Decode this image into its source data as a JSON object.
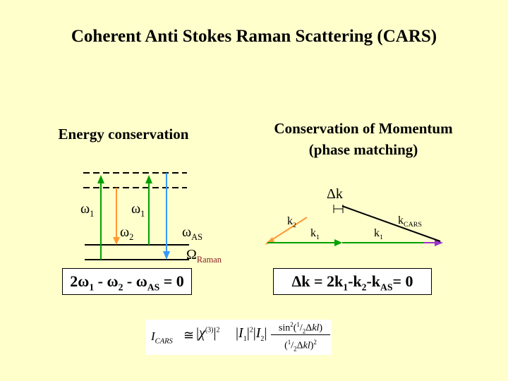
{
  "title": "Coherent Anti Stokes Raman Scattering (CARS)",
  "energy": {
    "heading": "Energy conservation",
    "omega_symbol": "ω",
    "labels": {
      "pump1_sub": "1",
      "pump2_sub": "1",
      "stokes_sub": "2",
      "anti_stokes_sub": "AS"
    },
    "raman": {
      "symbol": "Ω",
      "sub": "Raman"
    },
    "equation": {
      "a": "2ω",
      "a_sub": "1",
      "b": "- ω",
      "b_sub": "2",
      "c": "- ω",
      "c_sub": "AS",
      "end": "= 0"
    }
  },
  "momentum": {
    "heading_line1": "Conservation of Momentum",
    "heading_line2": "(phase matching)",
    "delta_k": "Δk",
    "k2": {
      "base": "k",
      "sub": "2"
    },
    "k1a": {
      "base": "k",
      "sub": "1"
    },
    "k1b": {
      "base": "k",
      "sub": "1"
    },
    "kcars": {
      "base": "k",
      "sub": "CARS"
    },
    "equation": {
      "a": "Δk = 2k",
      "a_sub": "1",
      "b": "-k",
      "b_sub": "2",
      "c": "-k",
      "c_sub": "AS",
      "end": "= 0"
    }
  },
  "formula": {
    "lhs": "I",
    "lhs_sub": "CARS",
    "approx": "≅",
    "chi": "χ",
    "chi_sup": "(3)",
    "sq": "2",
    "i1": "I",
    "i1_sub": "1",
    "i2": "I",
    "i2_sub": "2",
    "num_fn": "sin",
    "num_sup": "2",
    "frac_n": "1",
    "frac_d": "2",
    "dk": "Δ",
    "kl": "kl"
  },
  "colors": {
    "pump": "#00a000",
    "stokes": "#ff9933",
    "anti_stokes": "#3399ff",
    "cars": "#9933cc",
    "k1": "#00a000",
    "k2": "#ff9933"
  }
}
